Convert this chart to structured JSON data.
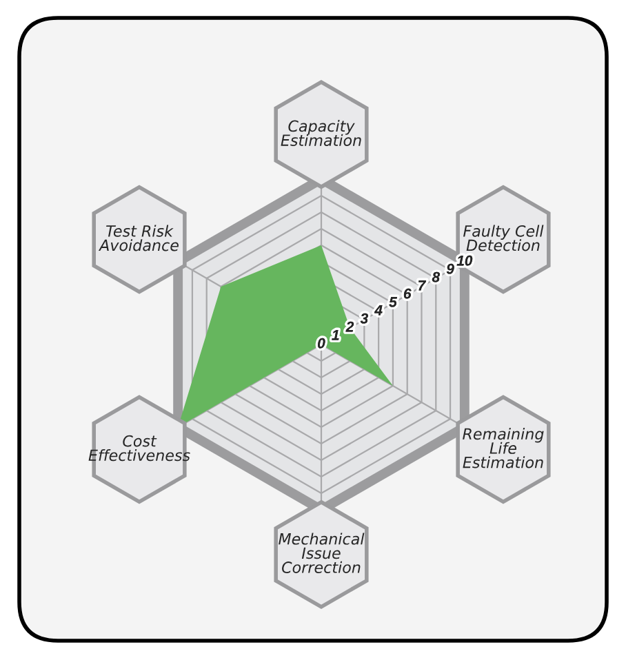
{
  "chart_data": {
    "type": "radar",
    "categories": [
      "Capacity\nEstimation",
      "Faulty Cell\nDetection",
      "Remaining\nLife\nEstimation",
      "Mechanical\nIssue\nCorrection",
      "Cost\nEffectiveness",
      "Test Risk\nAvoidance"
    ],
    "series": [
      {
        "color": "#66b65e",
        "values": [
          6,
          2,
          5,
          0,
          10,
          7
        ]
      }
    ],
    "ylim": [
      0,
      10
    ],
    "yticks": [
      0,
      1,
      2,
      3,
      4,
      5,
      6,
      7,
      8,
      9,
      10
    ],
    "grid": true
  }
}
